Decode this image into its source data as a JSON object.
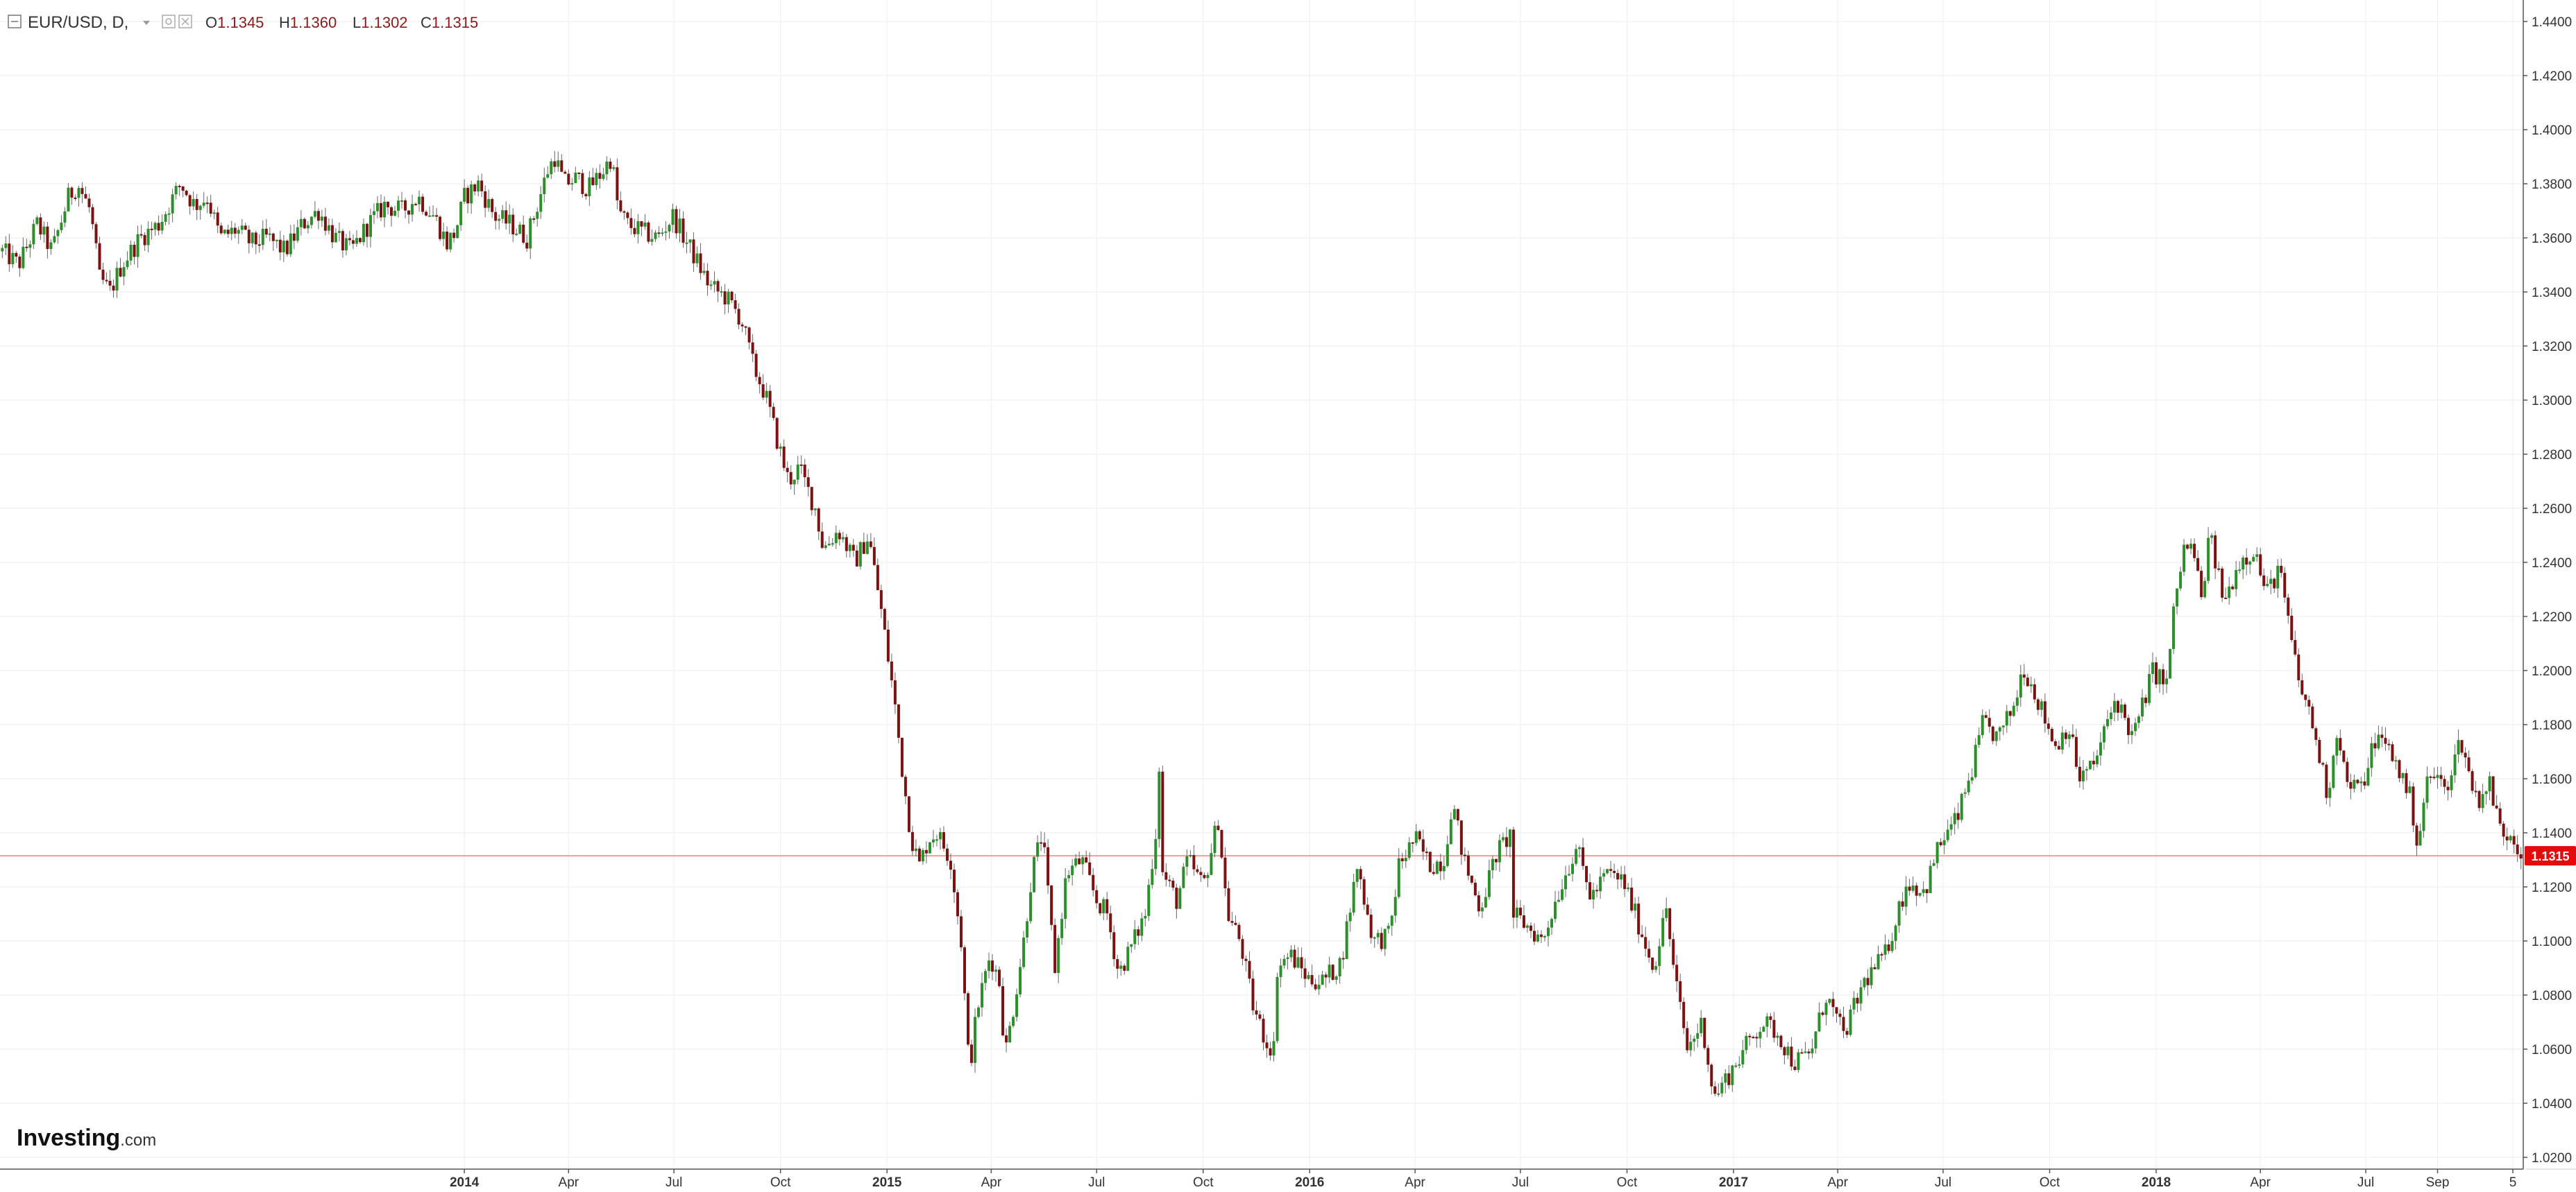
{
  "header": {
    "symbol_label": "EUR/USD, D,",
    "open_prefix": "O",
    "open_value": "1.1345",
    "high_prefix": "H",
    "high_value": "1.1360",
    "low_prefix": "L",
    "low_value": "1.1302",
    "close_prefix": "C",
    "close_value": "1.1315",
    "collapse_icon": "minus-square-icon",
    "dropdown_icon": "caret-down-icon",
    "settings_icons": [
      "settings-icon",
      "close-icon"
    ]
  },
  "watermark": {
    "brand_main": "Investing",
    "brand_suffix": ".com"
  },
  "price_badge": "1.1315",
  "colors": {
    "up_candle": "#2b8f2b",
    "down_candle": "#7a1212",
    "wick": "#666666",
    "price_line": "#f08080",
    "price_badge_bg": "#e30b0b",
    "grid": "#eeeeee",
    "axis_text": "#333333",
    "ohlc_text": "#8b1a1a"
  },
  "chart_data": {
    "type": "candlestick",
    "symbol": "EUR/USD",
    "interval": "D",
    "last_close": 1.1315,
    "ylim": [
      1.01,
      1.44
    ],
    "grid": true,
    "y_ticks": [
      "1.0200",
      "1.0400",
      "1.0600",
      "1.0800",
      "1.1000",
      "1.1200",
      "1.1400",
      "1.1600",
      "1.1800",
      "1.2000",
      "1.2200",
      "1.2400",
      "1.2600",
      "1.2800",
      "1.3000",
      "1.3200",
      "1.3400",
      "1.3600",
      "1.3800",
      "1.4000",
      "1.4200",
      "1.4400"
    ],
    "x_ticks": [
      {
        "label": "2014",
        "date": "2014-01-01",
        "bold": true
      },
      {
        "label": "Apr",
        "date": "2014-04-01",
        "bold": false
      },
      {
        "label": "Jul",
        "date": "2014-07-01",
        "bold": false
      },
      {
        "label": "Oct",
        "date": "2014-10-01",
        "bold": false
      },
      {
        "label": "2015",
        "date": "2015-01-01",
        "bold": true
      },
      {
        "label": "Apr",
        "date": "2015-04-01",
        "bold": false
      },
      {
        "label": "Jul",
        "date": "2015-07-01",
        "bold": false
      },
      {
        "label": "Oct",
        "date": "2015-10-01",
        "bold": false
      },
      {
        "label": "2016",
        "date": "2016-01-01",
        "bold": true
      },
      {
        "label": "Apr",
        "date": "2016-04-01",
        "bold": false
      },
      {
        "label": "Jul",
        "date": "2016-07-01",
        "bold": false
      },
      {
        "label": "Oct",
        "date": "2016-10-01",
        "bold": false
      },
      {
        "label": "2017",
        "date": "2017-01-01",
        "bold": true
      },
      {
        "label": "Apr",
        "date": "2017-04-01",
        "bold": false
      },
      {
        "label": "Jul",
        "date": "2017-07-01",
        "bold": false
      },
      {
        "label": "Oct",
        "date": "2017-10-01",
        "bold": false
      },
      {
        "label": "2018",
        "date": "2018-01-01",
        "bold": true
      },
      {
        "label": "Apr",
        "date": "2018-04-01",
        "bold": false
      },
      {
        "label": "Jul",
        "date": "2018-07-01",
        "bold": false
      },
      {
        "label": "Sep",
        "date": "2018-09-01",
        "bold": false
      },
      {
        "label": "5",
        "date": "2018-11-05",
        "bold": false
      }
    ],
    "x_range": [
      "2012-11-26",
      "2018-11-14"
    ],
    "close_path": [
      {
        "date": "2012-11-28",
        "close": 1.355
      },
      {
        "date": "2012-12-12",
        "close": 1.35
      },
      {
        "date": "2012-12-28",
        "close": 1.365
      },
      {
        "date": "2013-01-10",
        "close": 1.355
      },
      {
        "date": "2013-01-24",
        "close": 1.375
      },
      {
        "date": "2013-02-01",
        "close": 1.38
      },
      {
        "date": "2013-02-12",
        "close": 1.37
      },
      {
        "date": "2013-02-20",
        "close": 1.345
      },
      {
        "date": "2013-03-01",
        "close": 1.34
      },
      {
        "date": "2013-03-11",
        "close": 1.35
      },
      {
        "date": "2013-03-27",
        "close": 1.36
      },
      {
        "date": "2013-04-12",
        "close": 1.365
      },
      {
        "date": "2013-05-01",
        "close": 1.38
      },
      {
        "date": "2013-05-13",
        "close": 1.372
      },
      {
        "date": "2013-05-24",
        "close": 1.375
      },
      {
        "date": "2013-06-04",
        "close": 1.36
      },
      {
        "date": "2013-06-18",
        "close": 1.363
      },
      {
        "date": "2013-07-01",
        "close": 1.358
      },
      {
        "date": "2013-07-15",
        "close": 1.36
      },
      {
        "date": "2013-07-30",
        "close": 1.355
      },
      {
        "date": "2013-08-14",
        "close": 1.365
      },
      {
        "date": "2013-08-28",
        "close": 1.37
      },
      {
        "date": "2013-09-11",
        "close": 1.36
      },
      {
        "date": "2013-09-25",
        "close": 1.355
      },
      {
        "date": "2013-10-10",
        "close": 1.365
      },
      {
        "date": "2013-10-24",
        "close": 1.372
      },
      {
        "date": "2013-11-08",
        "close": 1.37
      },
      {
        "date": "2013-11-22",
        "close": 1.375
      },
      {
        "date": "2013-12-06",
        "close": 1.368
      },
      {
        "date": "2013-12-17",
        "close": 1.358
      },
      {
        "date": "2013-12-24",
        "close": 1.362
      },
      {
        "date": "2014-01-01",
        "close": 1.375
      },
      {
        "date": "2014-01-13",
        "close": 1.38
      },
      {
        "date": "2014-01-27",
        "close": 1.368
      },
      {
        "date": "2014-02-10",
        "close": 1.365
      },
      {
        "date": "2014-02-24",
        "close": 1.36
      },
      {
        "date": "2014-03-05",
        "close": 1.372
      },
      {
        "date": "2014-03-14",
        "close": 1.385
      },
      {
        "date": "2014-03-20",
        "close": 1.39
      },
      {
        "date": "2014-03-28",
        "close": 1.38
      },
      {
        "date": "2014-04-08",
        "close": 1.382
      },
      {
        "date": "2014-04-18",
        "close": 1.378
      },
      {
        "date": "2014-05-01",
        "close": 1.385
      },
      {
        "date": "2014-05-08",
        "close": 1.39
      },
      {
        "date": "2014-05-14",
        "close": 1.37
      },
      {
        "date": "2014-05-22",
        "close": 1.365
      },
      {
        "date": "2014-06-04",
        "close": 1.362
      },
      {
        "date": "2014-06-17",
        "close": 1.36
      },
      {
        "date": "2014-06-30",
        "close": 1.368
      },
      {
        "date": "2014-07-10",
        "close": 1.36
      },
      {
        "date": "2014-07-20",
        "close": 1.352
      },
      {
        "date": "2014-08-01",
        "close": 1.342
      },
      {
        "date": "2014-08-15",
        "close": 1.338
      },
      {
        "date": "2014-08-28",
        "close": 1.33
      },
      {
        "date": "2014-09-08",
        "close": 1.312
      },
      {
        "date": "2014-09-18",
        "close": 1.302
      },
      {
        "date": "2014-09-30",
        "close": 1.282
      },
      {
        "date": "2014-10-08",
        "close": 1.27
      },
      {
        "date": "2014-10-17",
        "close": 1.275
      },
      {
        "date": "2014-10-31",
        "close": 1.26
      },
      {
        "date": "2014-11-07",
        "close": 1.245
      },
      {
        "date": "2014-11-20",
        "close": 1.252
      },
      {
        "date": "2014-12-04",
        "close": 1.24
      },
      {
        "date": "2014-12-16",
        "close": 1.25
      },
      {
        "date": "2014-12-26",
        "close": 1.225
      },
      {
        "date": "2015-01-07",
        "close": 1.19
      },
      {
        "date": "2015-01-15",
        "close": 1.16
      },
      {
        "date": "2015-01-22",
        "close": 1.138
      },
      {
        "date": "2015-01-29",
        "close": 1.128
      },
      {
        "date": "2015-02-06",
        "close": 1.138
      },
      {
        "date": "2015-02-13",
        "close": 1.14
      },
      {
        "date": "2015-02-25",
        "close": 1.13
      },
      {
        "date": "2015-03-06",
        "close": 1.1
      },
      {
        "date": "2015-03-13",
        "close": 1.052
      },
      {
        "date": "2015-03-20",
        "close": 1.075
      },
      {
        "date": "2015-03-31",
        "close": 1.095
      },
      {
        "date": "2015-04-08",
        "close": 1.085
      },
      {
        "date": "2015-04-13",
        "close": 1.058
      },
      {
        "date": "2015-04-20",
        "close": 1.075
      },
      {
        "date": "2015-04-29",
        "close": 1.1
      },
      {
        "date": "2015-05-06",
        "close": 1.125
      },
      {
        "date": "2015-05-15",
        "close": 1.14
      },
      {
        "date": "2015-05-26",
        "close": 1.09
      },
      {
        "date": "2015-06-05",
        "close": 1.125
      },
      {
        "date": "2015-06-18",
        "close": 1.13
      },
      {
        "date": "2015-07-01",
        "close": 1.115
      },
      {
        "date": "2015-07-10",
        "close": 1.11
      },
      {
        "date": "2015-07-20",
        "close": 1.088
      },
      {
        "date": "2015-07-31",
        "close": 1.098
      },
      {
        "date": "2015-08-12",
        "close": 1.11
      },
      {
        "date": "2015-08-21",
        "close": 1.14
      },
      {
        "date": "2015-08-24",
        "close": 1.165
      },
      {
        "date": "2015-08-27",
        "close": 1.125
      },
      {
        "date": "2015-09-08",
        "close": 1.115
      },
      {
        "date": "2015-09-18",
        "close": 1.13
      },
      {
        "date": "2015-10-01",
        "close": 1.12
      },
      {
        "date": "2015-10-14",
        "close": 1.145
      },
      {
        "date": "2015-10-22",
        "close": 1.11
      },
      {
        "date": "2015-11-02",
        "close": 1.1
      },
      {
        "date": "2015-11-13",
        "close": 1.076
      },
      {
        "date": "2015-11-25",
        "close": 1.062
      },
      {
        "date": "2015-12-03",
        "close": 1.06
      },
      {
        "date": "2015-12-04",
        "close": 1.09
      },
      {
        "date": "2015-12-15",
        "close": 1.095
      },
      {
        "date": "2015-12-31",
        "close": 1.086
      },
      {
        "date": "2016-01-12",
        "close": 1.085
      },
      {
        "date": "2016-01-28",
        "close": 1.092
      },
      {
        "date": "2016-02-11",
        "close": 1.128
      },
      {
        "date": "2016-02-25",
        "close": 1.1
      },
      {
        "date": "2016-03-10",
        "close": 1.102
      },
      {
        "date": "2016-03-18",
        "close": 1.128
      },
      {
        "date": "2016-04-01",
        "close": 1.138
      },
      {
        "date": "2016-04-14",
        "close": 1.128
      },
      {
        "date": "2016-04-26",
        "close": 1.13
      },
      {
        "date": "2016-05-03",
        "close": 1.152
      },
      {
        "date": "2016-05-13",
        "close": 1.13
      },
      {
        "date": "2016-05-27",
        "close": 1.112
      },
      {
        "date": "2016-06-10",
        "close": 1.132
      },
      {
        "date": "2016-06-23",
        "close": 1.14
      },
      {
        "date": "2016-06-24",
        "close": 1.11
      },
      {
        "date": "2016-07-08",
        "close": 1.105
      },
      {
        "date": "2016-07-20",
        "close": 1.1
      },
      {
        "date": "2016-08-01",
        "close": 1.116
      },
      {
        "date": "2016-08-18",
        "close": 1.135
      },
      {
        "date": "2016-08-31",
        "close": 1.116
      },
      {
        "date": "2016-09-14",
        "close": 1.125
      },
      {
        "date": "2016-09-28",
        "close": 1.122
      },
      {
        "date": "2016-10-12",
        "close": 1.105
      },
      {
        "date": "2016-10-24",
        "close": 1.09
      },
      {
        "date": "2016-11-04",
        "close": 1.112
      },
      {
        "date": "2016-11-10",
        "close": 1.09
      },
      {
        "date": "2016-11-22",
        "close": 1.06
      },
      {
        "date": "2016-12-05",
        "close": 1.07
      },
      {
        "date": "2016-12-15",
        "close": 1.042
      },
      {
        "date": "2016-12-30",
        "close": 1.052
      },
      {
        "date": "2017-01-13",
        "close": 1.062
      },
      {
        "date": "2017-01-26",
        "close": 1.07
      },
      {
        "date": "2017-02-08",
        "close": 1.066
      },
      {
        "date": "2017-02-22",
        "close": 1.055
      },
      {
        "date": "2017-03-08",
        "close": 1.058
      },
      {
        "date": "2017-03-22",
        "close": 1.08
      },
      {
        "date": "2017-04-06",
        "close": 1.065
      },
      {
        "date": "2017-04-24",
        "close": 1.085
      },
      {
        "date": "2017-05-12",
        "close": 1.095
      },
      {
        "date": "2017-05-31",
        "close": 1.122
      },
      {
        "date": "2017-06-15",
        "close": 1.118
      },
      {
        "date": "2017-06-27",
        "close": 1.135
      },
      {
        "date": "2017-07-13",
        "close": 1.145
      },
      {
        "date": "2017-07-27",
        "close": 1.165
      },
      {
        "date": "2017-08-04",
        "close": 1.18
      },
      {
        "date": "2017-08-18",
        "close": 1.175
      },
      {
        "date": "2017-09-01",
        "close": 1.188
      },
      {
        "date": "2017-09-08",
        "close": 1.202
      },
      {
        "date": "2017-09-20",
        "close": 1.19
      },
      {
        "date": "2017-10-06",
        "close": 1.172
      },
      {
        "date": "2017-10-17",
        "close": 1.18
      },
      {
        "date": "2017-10-27",
        "close": 1.16
      },
      {
        "date": "2017-11-08",
        "close": 1.165
      },
      {
        "date": "2017-11-27",
        "close": 1.19
      },
      {
        "date": "2017-12-12",
        "close": 1.175
      },
      {
        "date": "2017-12-29",
        "close": 1.2
      },
      {
        "date": "2018-01-10",
        "close": 1.195
      },
      {
        "date": "2018-01-17",
        "close": 1.225
      },
      {
        "date": "2018-01-25",
        "close": 1.245
      },
      {
        "date": "2018-02-02",
        "close": 1.245
      },
      {
        "date": "2018-02-09",
        "close": 1.226
      },
      {
        "date": "2018-02-16",
        "close": 1.25
      },
      {
        "date": "2018-03-01",
        "close": 1.225
      },
      {
        "date": "2018-03-13",
        "close": 1.24
      },
      {
        "date": "2018-03-27",
        "close": 1.245
      },
      {
        "date": "2018-04-06",
        "close": 1.228
      },
      {
        "date": "2018-04-17",
        "close": 1.238
      },
      {
        "date": "2018-04-25",
        "close": 1.218
      },
      {
        "date": "2018-05-04",
        "close": 1.196
      },
      {
        "date": "2018-05-15",
        "close": 1.182
      },
      {
        "date": "2018-05-29",
        "close": 1.154
      },
      {
        "date": "2018-06-07",
        "close": 1.18
      },
      {
        "date": "2018-06-14",
        "close": 1.158
      },
      {
        "date": "2018-06-27",
        "close": 1.156
      },
      {
        "date": "2018-07-09",
        "close": 1.175
      },
      {
        "date": "2018-07-20",
        "close": 1.172
      },
      {
        "date": "2018-08-02",
        "close": 1.16
      },
      {
        "date": "2018-08-09",
        "close": 1.152
      },
      {
        "date": "2018-08-15",
        "close": 1.135
      },
      {
        "date": "2018-08-22",
        "close": 1.158
      },
      {
        "date": "2018-08-31",
        "close": 1.162
      },
      {
        "date": "2018-09-07",
        "close": 1.155
      },
      {
        "date": "2018-09-21",
        "close": 1.175
      },
      {
        "date": "2018-09-28",
        "close": 1.162
      },
      {
        "date": "2018-10-05",
        "close": 1.152
      },
      {
        "date": "2018-10-16",
        "close": 1.158
      },
      {
        "date": "2018-10-26",
        "close": 1.14
      },
      {
        "date": "2018-11-05",
        "close": 1.14
      },
      {
        "date": "2018-11-12",
        "close": 1.1315
      }
    ]
  }
}
